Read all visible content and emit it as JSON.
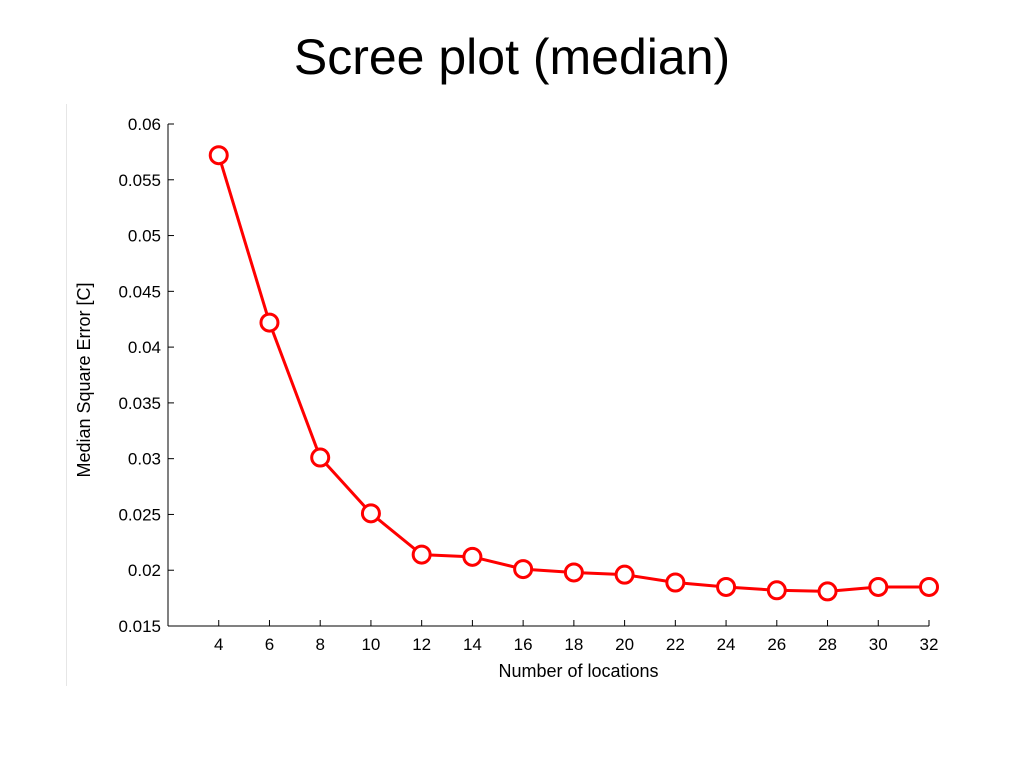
{
  "slide": {
    "title": "Scree plot (median)"
  },
  "chart_data": {
    "type": "line",
    "title": "",
    "xlabel": "Number of locations",
    "ylabel": "Median Square Error [C]",
    "x": [
      4,
      6,
      8,
      10,
      12,
      14,
      16,
      18,
      20,
      22,
      24,
      26,
      28,
      30,
      32
    ],
    "series": [
      {
        "values": [
          0.0572,
          0.0422,
          0.0301,
          0.0251,
          0.0214,
          0.0212,
          0.0201,
          0.0198,
          0.0196,
          0.0189,
          0.0185,
          0.0182,
          0.0181,
          0.0185,
          0.0185
        ],
        "color": "#ff0000",
        "marker": "open-circle"
      }
    ],
    "xlim": [
      2,
      32
    ],
    "ylim": [
      0.015,
      0.06
    ],
    "xticks": [
      "4",
      "6",
      "8",
      "10",
      "12",
      "14",
      "16",
      "18",
      "20",
      "22",
      "24",
      "26",
      "28",
      "30",
      "32"
    ],
    "yticks": [
      "0.015",
      "0.02",
      "0.025",
      "0.03",
      "0.035",
      "0.04",
      "0.045",
      "0.05",
      "0.055",
      "0.06"
    ],
    "grid": false,
    "legend": "none"
  }
}
